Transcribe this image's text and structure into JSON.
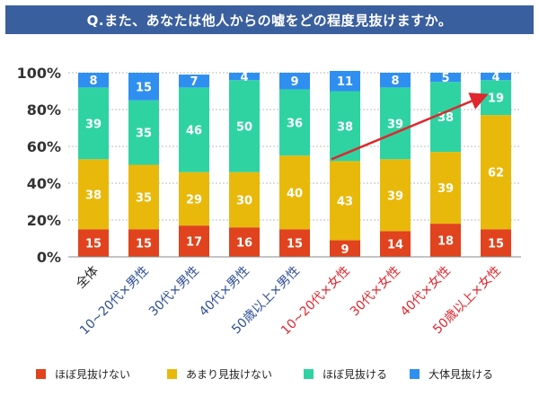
{
  "title": "Q.また、あなたは他人からの嘘をどの程度見抜けますか。",
  "colors": {
    "title_bg": "#3a5f9e",
    "male_label": "#2f4f96",
    "female_label": "#e0262e",
    "arrow": "#e0262e"
  },
  "chart_data": {
    "type": "bar",
    "stacked": true,
    "orientation": "vertical",
    "ylim": [
      0,
      100
    ],
    "yticks": [
      "0%",
      "20%",
      "40%",
      "60%",
      "80%",
      "100%"
    ],
    "grid": true,
    "legend_position": "bottom",
    "categories": [
      "全体",
      "10~20代×男性",
      "30代×男性",
      "40代×男性",
      "50歳以上×男性",
      "10~20代×女性",
      "30代×女性",
      "40代×女性",
      "50歳以上×女性"
    ],
    "category_groups": [
      "all",
      "male",
      "male",
      "male",
      "male",
      "female",
      "female",
      "female",
      "female"
    ],
    "series": [
      {
        "name": "ほぼ見抜けない",
        "color": "#e0431e",
        "values": [
          15,
          15,
          17,
          16,
          15,
          9,
          14,
          18,
          15
        ]
      },
      {
        "name": "あまり見抜けない",
        "color": "#e8b90b",
        "values": [
          38,
          35,
          29,
          30,
          40,
          43,
          39,
          39,
          62
        ]
      },
      {
        "name": "ほぼ見抜ける",
        "color": "#2fd3a2",
        "values": [
          39,
          35,
          46,
          50,
          36,
          38,
          39,
          38,
          19
        ]
      },
      {
        "name": "大体見抜ける",
        "color": "#2f8ff0",
        "values": [
          8,
          15,
          7,
          4,
          9,
          11,
          8,
          5,
          4
        ]
      }
    ],
    "annotation": {
      "type": "arrow",
      "from_category": "10~20代×女性",
      "to_category": "50歳以上×女性"
    }
  }
}
